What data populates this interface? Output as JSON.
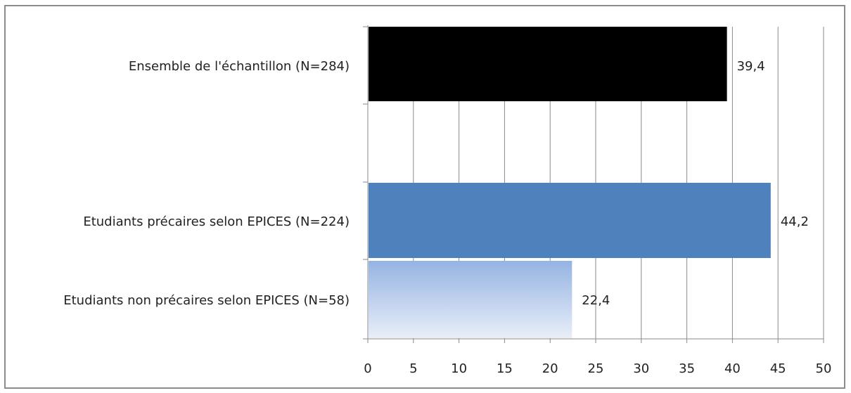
{
  "chart_data": {
    "type": "bar",
    "orientation": "horizontal",
    "title": "",
    "xlabel": "",
    "ylabel": "",
    "categories": [
      "Ensemble de l'échantillon (N=284)",
      "Etudiants précaires selon EPICES (N=224)",
      "Etudiants non précaires selon EPICES (N=58)"
    ],
    "values": [
      39.4,
      44.2,
      22.4
    ],
    "value_labels": [
      "39,4",
      "44,2",
      "22,4"
    ],
    "xlim": [
      0,
      50
    ],
    "xticks": [
      0,
      5,
      10,
      15,
      20,
      25,
      30,
      35,
      40,
      45,
      50
    ],
    "xtick_labels": [
      "0",
      "5",
      "10",
      "15",
      "20",
      "25",
      "30",
      "35",
      "40",
      "45",
      "50"
    ],
    "grid": "vertical",
    "legend": "none",
    "colors": {
      "bar_1": "#000000",
      "bar_2": "#4f81bd",
      "bar_3_gradient_top": "#95b3e2",
      "bar_3_gradient_bottom": "#e8eef8",
      "gridline": "#8a8a8a",
      "frame": "#8c8c8c"
    }
  }
}
